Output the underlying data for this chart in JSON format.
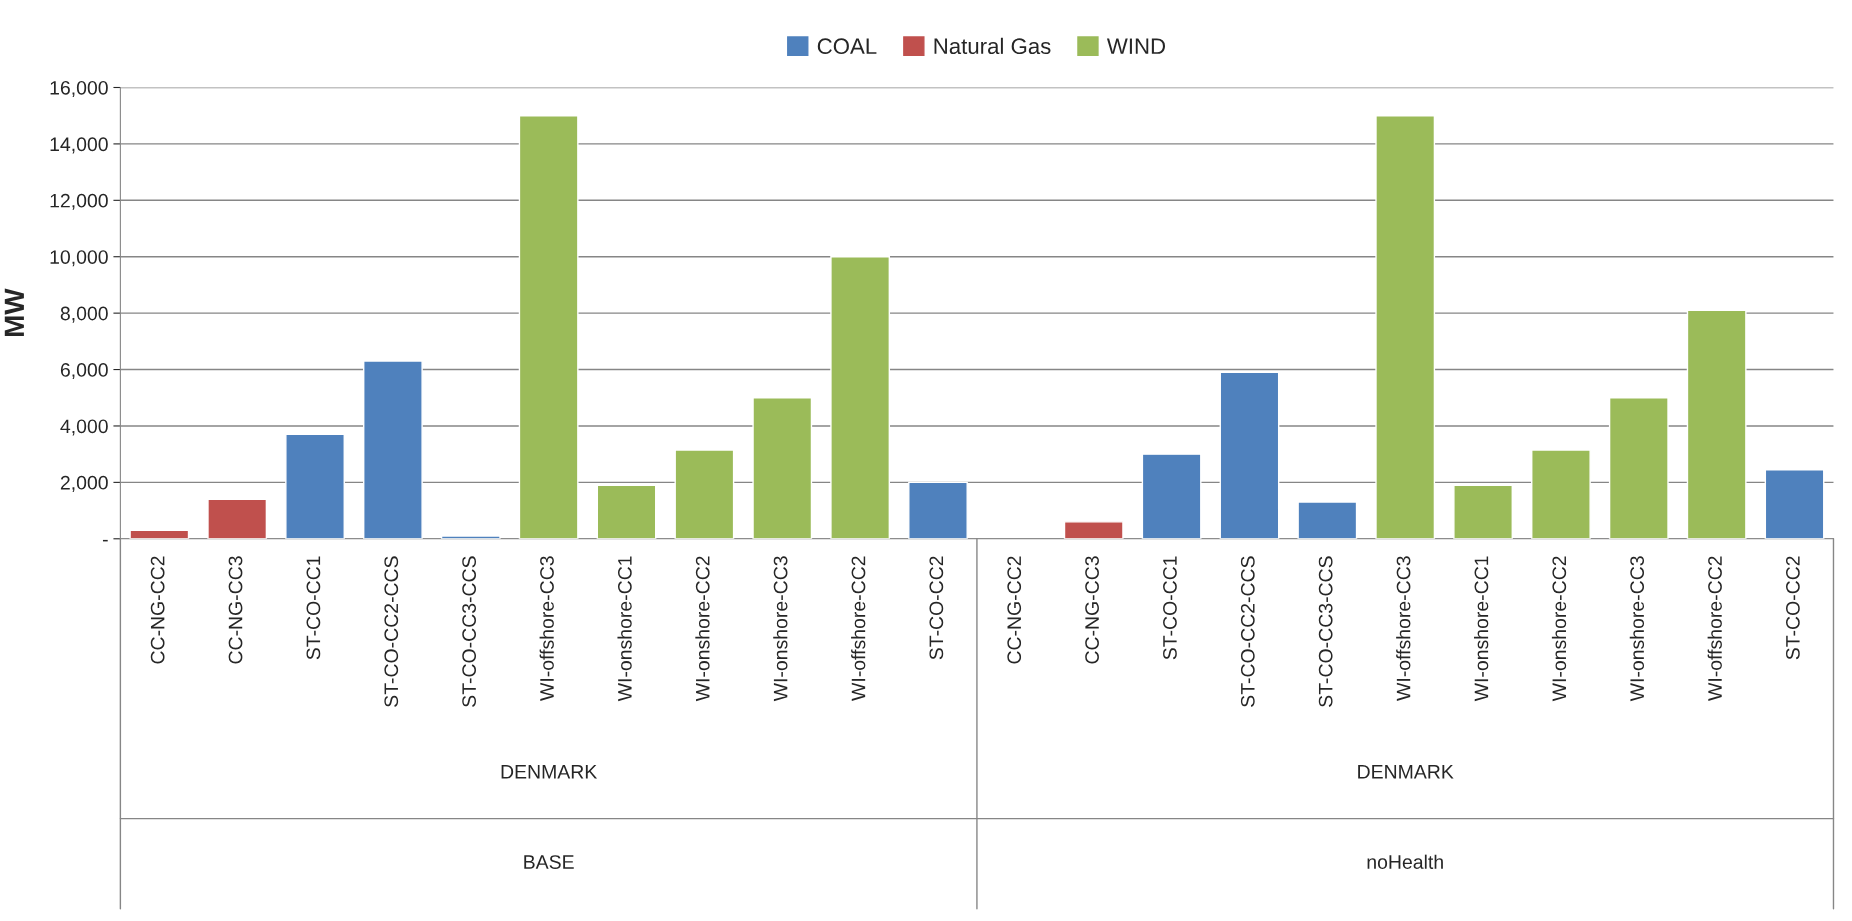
{
  "chart_data": {
    "type": "bar",
    "ylabel": "MW",
    "categories": [
      "CC-NG-CC2",
      "CC-NG-CC3",
      "ST-CO-CC1",
      "ST-CO-CC2-CCS",
      "ST-CO-CC3-CCS",
      "WI-offshore-CC3",
      "WI-onshore-CC1",
      "WI-onshore-CC2",
      "WI-onshore-CC3",
      "WI-offshore-CC2",
      "ST-CO-CC2",
      "CC-NG-CC2",
      "CC-NG-CC3",
      "ST-CO-CC1",
      "ST-CO-CC2-CCS",
      "ST-CO-CC3-CCS",
      "WI-offshore-CC3",
      "WI-onshore-CC1",
      "WI-onshore-CC2",
      "WI-onshore-CC3",
      "WI-offshore-CC2",
      "ST-CO-CC2"
    ],
    "series": [
      {
        "name": "COAL",
        "color": "#4f81bd",
        "values": [
          null,
          null,
          3700,
          6300,
          100,
          null,
          null,
          null,
          null,
          null,
          2000,
          null,
          null,
          3000,
          5900,
          1300,
          null,
          null,
          null,
          null,
          null,
          2450
        ]
      },
      {
        "name": "Natural Gas",
        "color": "#c0504d",
        "values": [
          300,
          1400,
          null,
          null,
          null,
          null,
          null,
          null,
          null,
          null,
          null,
          null,
          600,
          null,
          null,
          null,
          null,
          null,
          null,
          null,
          null,
          null
        ]
      },
      {
        "name": "WIND",
        "color": "#9bbb59",
        "values": [
          null,
          null,
          null,
          null,
          null,
          15000,
          1900,
          3150,
          5000,
          10000,
          null,
          null,
          null,
          null,
          null,
          null,
          15000,
          1900,
          3150,
          5000,
          8100,
          null
        ]
      }
    ],
    "ylim": [
      0,
      16000
    ],
    "yticks": [
      {
        "value": 0,
        "label": "-"
      },
      {
        "value": 2000,
        "label": "2,000"
      },
      {
        "value": 4000,
        "label": "4,000"
      },
      {
        "value": 6000,
        "label": "6,000"
      },
      {
        "value": 8000,
        "label": "8,000"
      },
      {
        "value": 10000,
        "label": "10,000"
      },
      {
        "value": 12000,
        "label": "12,000"
      },
      {
        "value": 14000,
        "label": "14,000"
      },
      {
        "value": 16000,
        "label": "16,000"
      }
    ],
    "grid": "y",
    "legend": "top",
    "annotations": [
      "DENMARK",
      "BASE",
      "DENMARK",
      "noHealth"
    ]
  }
}
